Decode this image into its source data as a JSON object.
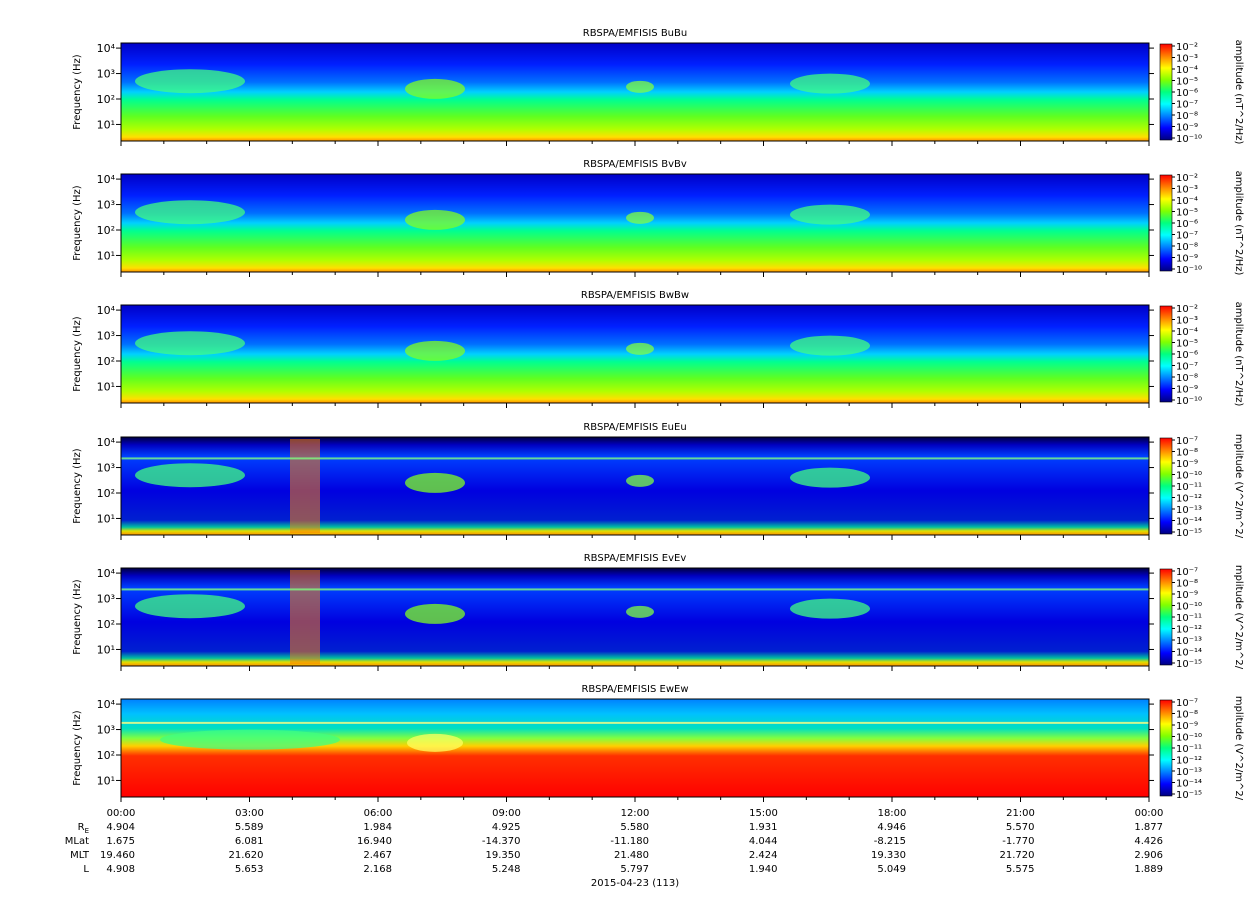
{
  "colors": {
    "background": "#ffffff",
    "axis": "#000000",
    "colormap": [
      "#000080",
      "#0000ff",
      "#0080ff",
      "#00ffff",
      "#00ff80",
      "#80ff00",
      "#ffff00",
      "#ff8000",
      "#ff0000"
    ]
  },
  "chart_data": [
    {
      "type": "heatmap",
      "title": "RBSPA/EMFISIS  BuBu",
      "ylabel": "Frequency (Hz)",
      "yscale": "log",
      "y_tick_labels": [
        "10¹",
        "10²",
        "10³",
        "10⁴"
      ],
      "y_tick_values": [
        10,
        100,
        1000,
        10000
      ],
      "colorbar": {
        "label": "amplitude (nT^2/Hz)",
        "tick_labels": [
          "10⁻²",
          "10⁻³",
          "10⁻⁴",
          "10⁻⁵",
          "10⁻⁶",
          "10⁻⁷",
          "10⁻⁸",
          "10⁻⁹",
          "10⁻¹⁰"
        ],
        "range": [
          1e-10,
          0.01
        ],
        "scale": "log"
      }
    },
    {
      "type": "heatmap",
      "title": "RBSPA/EMFISIS  BvBv",
      "ylabel": "Frequency (Hz)",
      "yscale": "log",
      "y_tick_labels": [
        "10¹",
        "10²",
        "10³",
        "10⁴"
      ],
      "y_tick_values": [
        10,
        100,
        1000,
        10000
      ],
      "colorbar": {
        "label": "amplitude (nT^2/Hz)",
        "tick_labels": [
          "10⁻²",
          "10⁻³",
          "10⁻⁴",
          "10⁻⁵",
          "10⁻⁶",
          "10⁻⁷",
          "10⁻⁸",
          "10⁻⁹",
          "10⁻¹⁰"
        ],
        "range": [
          1e-10,
          0.01
        ],
        "scale": "log"
      }
    },
    {
      "type": "heatmap",
      "title": "RBSPA/EMFISIS  BwBw",
      "ylabel": "Frequency (Hz)",
      "yscale": "log",
      "y_tick_labels": [
        "10¹",
        "10²",
        "10³",
        "10⁴"
      ],
      "y_tick_values": [
        10,
        100,
        1000,
        10000
      ],
      "colorbar": {
        "label": "amplitude (nT^2/Hz)",
        "tick_labels": [
          "10⁻²",
          "10⁻³",
          "10⁻⁴",
          "10⁻⁵",
          "10⁻⁶",
          "10⁻⁷",
          "10⁻⁸",
          "10⁻⁹",
          "10⁻¹⁰"
        ],
        "range": [
          1e-10,
          0.01
        ],
        "scale": "log"
      }
    },
    {
      "type": "heatmap",
      "title": "RBSPA/EMFISIS  EuEu",
      "ylabel": "Frequency (Hz)",
      "yscale": "log",
      "y_tick_labels": [
        "10¹",
        "10²",
        "10³",
        "10⁴"
      ],
      "y_tick_values": [
        10,
        100,
        1000,
        10000
      ],
      "colorbar": {
        "label": "mplitude (V^2/m^2/",
        "tick_labels": [
          "10⁻⁷",
          "10⁻⁸",
          "10⁻⁹",
          "10⁻¹⁰",
          "10⁻¹¹",
          "10⁻¹²",
          "10⁻¹³",
          "10⁻¹⁴",
          "10⁻¹⁵"
        ],
        "range": [
          1e-15,
          1e-07
        ],
        "scale": "log"
      }
    },
    {
      "type": "heatmap",
      "title": "RBSPA/EMFISIS  EvEv",
      "ylabel": "Frequency (Hz)",
      "yscale": "log",
      "y_tick_labels": [
        "10¹",
        "10²",
        "10³",
        "10⁴"
      ],
      "y_tick_values": [
        10,
        100,
        1000,
        10000
      ],
      "colorbar": {
        "label": "mplitude (V^2/m^2/",
        "tick_labels": [
          "10⁻⁷",
          "10⁻⁸",
          "10⁻⁹",
          "10⁻¹⁰",
          "10⁻¹¹",
          "10⁻¹²",
          "10⁻¹³",
          "10⁻¹⁴",
          "10⁻¹⁵"
        ],
        "range": [
          1e-15,
          1e-07
        ],
        "scale": "log"
      }
    },
    {
      "type": "heatmap",
      "title": "RBSPA/EMFISIS  EwEw",
      "ylabel": "Frequency (Hz)",
      "yscale": "log",
      "y_tick_labels": [
        "10¹",
        "10²",
        "10³",
        "10⁴"
      ],
      "y_tick_values": [
        10,
        100,
        1000,
        10000
      ],
      "colorbar": {
        "label": "mplitude (V^2/m^2/",
        "tick_labels": [
          "10⁻⁷",
          "10⁻⁸",
          "10⁻⁹",
          "10⁻¹⁰",
          "10⁻¹¹",
          "10⁻¹²",
          "10⁻¹³",
          "10⁻¹⁴",
          "10⁻¹⁵"
        ],
        "range": [
          1e-15,
          1e-07
        ],
        "scale": "log"
      }
    }
  ],
  "x_axis": {
    "tick_labels": [
      "00:00",
      "03:00",
      "06:00",
      "09:00",
      "12:00",
      "15:00",
      "18:00",
      "21:00",
      "00:00"
    ],
    "date_label": "2015-04-23 (113)"
  },
  "ephemeris": {
    "rows": [
      {
        "label_main": "R",
        "label_sub": "E",
        "values": [
          "4.904",
          "5.589",
          "1.984",
          "4.925",
          "5.580",
          "1.931",
          "4.946",
          "5.570",
          "1.877"
        ]
      },
      {
        "label_main": "MLat",
        "label_sub": "",
        "values": [
          "1.675",
          "6.081",
          "16.940",
          "-14.370",
          "-11.180",
          "4.044",
          "-8.215",
          "-1.770",
          "4.426"
        ]
      },
      {
        "label_main": "MLT",
        "label_sub": "",
        "values": [
          "19.460",
          "21.620",
          "2.467",
          "19.350",
          "21.480",
          "2.424",
          "19.330",
          "21.720",
          "2.906"
        ]
      },
      {
        "label_main": "L",
        "label_sub": "",
        "values": [
          "4.908",
          "5.653",
          "2.168",
          "5.248",
          "5.797",
          "1.940",
          "5.049",
          "5.575",
          "1.889"
        ]
      }
    ]
  }
}
